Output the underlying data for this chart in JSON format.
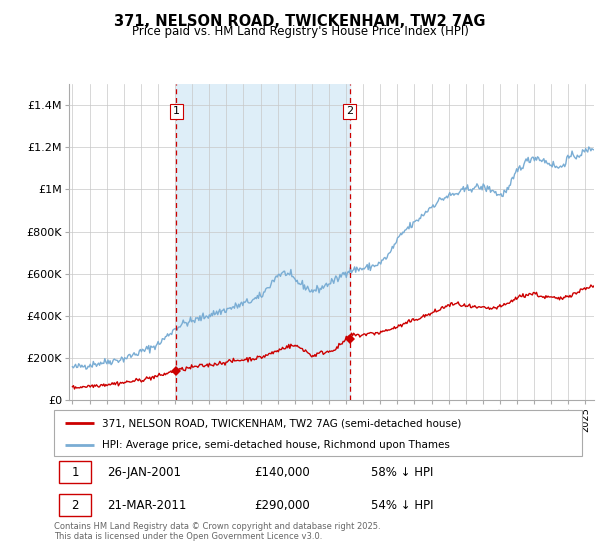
{
  "title": "371, NELSON ROAD, TWICKENHAM, TW2 7AG",
  "subtitle": "Price paid vs. HM Land Registry's House Price Index (HPI)",
  "legend_line1": "371, NELSON ROAD, TWICKENHAM, TW2 7AG (semi-detached house)",
  "legend_line2": "HPI: Average price, semi-detached house, Richmond upon Thames",
  "footer": "Contains HM Land Registry data © Crown copyright and database right 2025.\nThis data is licensed under the Open Government Licence v3.0.",
  "red_color": "#cc0000",
  "blue_color": "#7aadd4",
  "blue_fill": "#deeef8",
  "vline_color": "#cc0000",
  "ylim": [
    0,
    1500000
  ],
  "yticks": [
    0,
    200000,
    400000,
    600000,
    800000,
    1000000,
    1200000,
    1400000
  ],
  "ytick_labels": [
    "£0",
    "£200K",
    "£400K",
    "£600K",
    "£800K",
    "£1M",
    "£1.2M",
    "£1.4M"
  ],
  "sale1_date": "26-JAN-2001",
  "sale1_price": "£140,000",
  "sale1_pct": "58% ↓ HPI",
  "sale2_date": "21-MAR-2011",
  "sale2_price": "£290,000",
  "sale2_pct": "54% ↓ HPI",
  "sale1_year": 2001.07,
  "sale1_value": 140000,
  "sale2_year": 2011.22,
  "sale2_value": 290000,
  "vline1_year": 2001.07,
  "vline2_year": 2011.22,
  "xmin": 1994.8,
  "xmax": 2025.5
}
